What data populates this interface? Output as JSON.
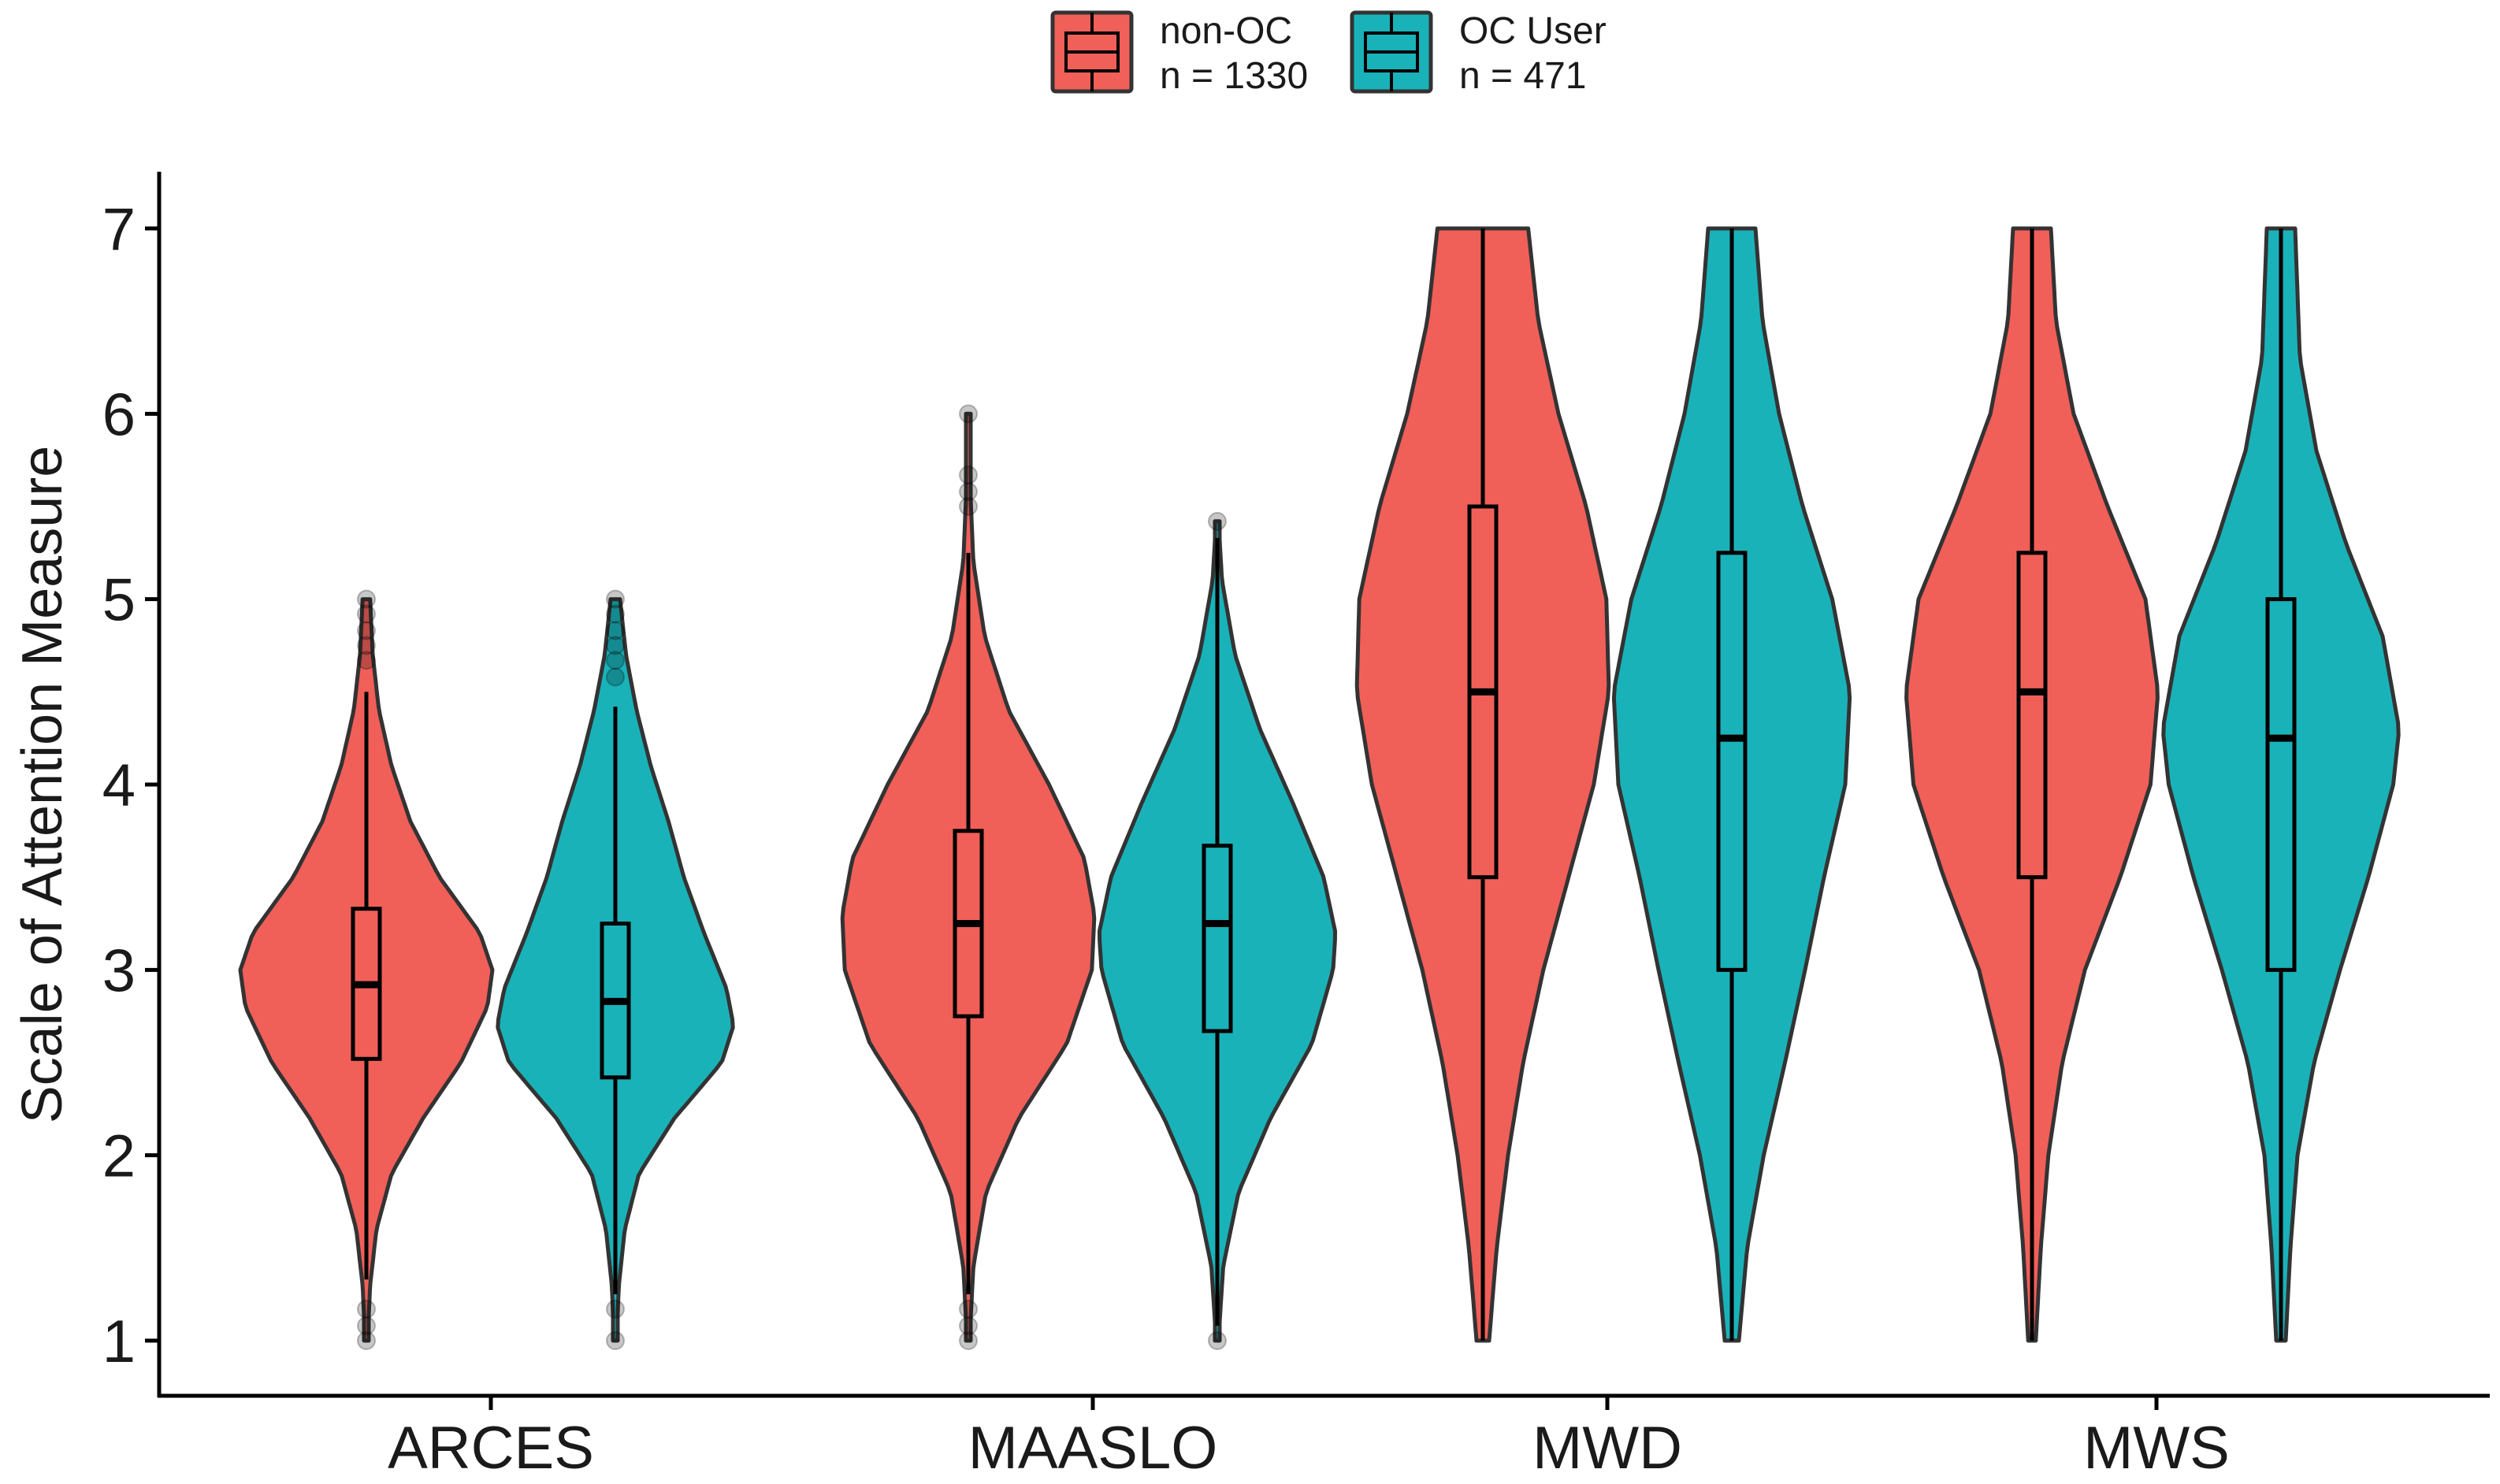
{
  "chart_data": {
    "type": "violin",
    "title": "",
    "xlabel": "",
    "ylabel": "Scale of Attention Measure",
    "ylim": [
      1,
      7
    ],
    "yticks": [
      1,
      2,
      3,
      4,
      5,
      6,
      7
    ],
    "grid": false,
    "legend_position": "top",
    "categories": [
      "ARCES",
      "MAASLO",
      "MWD",
      "MWS"
    ],
    "series": [
      {
        "name": "non-OC",
        "label_line1": "non-OC",
        "label_line2": "n = 1330",
        "n": 1330,
        "color": "#F15F59",
        "groups": [
          {
            "category": "ARCES",
            "min": 1.0,
            "max": 5.0,
            "q1": 2.52,
            "median": 2.92,
            "q3": 3.33,
            "whisker_low": 1.33,
            "whisker_high": 4.5,
            "outliers": [
              5.0,
              4.92,
              4.83,
              4.75,
              4.67,
              1.17,
              1.08,
              1.0
            ],
            "density": [
              [
                1.0,
                0.01
              ],
              [
                1.3,
                0.03
              ],
              [
                1.6,
                0.08
              ],
              [
                1.9,
                0.2
              ],
              [
                2.2,
                0.45
              ],
              [
                2.5,
                0.75
              ],
              [
                2.8,
                0.96
              ],
              [
                3.0,
                1.0
              ],
              [
                3.2,
                0.9
              ],
              [
                3.5,
                0.58
              ],
              [
                3.8,
                0.35
              ],
              [
                4.1,
                0.2
              ],
              [
                4.4,
                0.1
              ],
              [
                4.7,
                0.05
              ],
              [
                5.0,
                0.03
              ]
            ]
          },
          {
            "category": "MAASLO",
            "min": 1.0,
            "max": 6.0,
            "q1": 2.75,
            "median": 3.25,
            "q3": 3.75,
            "whisker_low": 1.25,
            "whisker_high": 5.25,
            "outliers": [
              6.0,
              5.67,
              5.58,
              5.5,
              1.17,
              1.08,
              1.0
            ],
            "density": [
              [
                1.0,
                0.01
              ],
              [
                1.4,
                0.04
              ],
              [
                1.8,
                0.14
              ],
              [
                2.2,
                0.4
              ],
              [
                2.6,
                0.78
              ],
              [
                3.0,
                0.98
              ],
              [
                3.3,
                1.0
              ],
              [
                3.6,
                0.92
              ],
              [
                4.0,
                0.64
              ],
              [
                4.4,
                0.32
              ],
              [
                4.8,
                0.13
              ],
              [
                5.2,
                0.04
              ],
              [
                5.6,
                0.015
              ],
              [
                6.0,
                0.005
              ]
            ]
          },
          {
            "category": "MWD",
            "min": 1.0,
            "max": 7.0,
            "q1": 3.5,
            "median": 4.5,
            "q3": 5.5,
            "whisker_low": 1.0,
            "whisker_high": 7.0,
            "outliers": [],
            "density": [
              [
                1.0,
                0.05
              ],
              [
                1.5,
                0.11
              ],
              [
                2.0,
                0.2
              ],
              [
                2.5,
                0.32
              ],
              [
                3.0,
                0.48
              ],
              [
                3.5,
                0.68
              ],
              [
                4.0,
                0.88
              ],
              [
                4.5,
                1.0
              ],
              [
                5.0,
                0.98
              ],
              [
                5.5,
                0.82
              ],
              [
                6.0,
                0.6
              ],
              [
                6.5,
                0.44
              ],
              [
                7.0,
                0.36
              ]
            ]
          },
          {
            "category": "MWS",
            "min": 1.0,
            "max": 7.0,
            "q1": 3.5,
            "median": 4.5,
            "q3": 5.25,
            "whisker_low": 1.0,
            "whisker_high": 7.0,
            "outliers": [],
            "density": [
              [
                1.0,
                0.03
              ],
              [
                1.5,
                0.07
              ],
              [
                2.0,
                0.13
              ],
              [
                2.5,
                0.24
              ],
              [
                3.0,
                0.42
              ],
              [
                3.5,
                0.7
              ],
              [
                4.0,
                0.94
              ],
              [
                4.5,
                1.0
              ],
              [
                5.0,
                0.9
              ],
              [
                5.5,
                0.6
              ],
              [
                6.0,
                0.33
              ],
              [
                6.5,
                0.19
              ],
              [
                7.0,
                0.15
              ]
            ]
          }
        ]
      },
      {
        "name": "OC User",
        "label_line1": "OC User",
        "label_line2": "n = 471",
        "n": 471,
        "color": "#1AB2B9",
        "groups": [
          {
            "category": "ARCES",
            "min": 1.0,
            "max": 5.0,
            "q1": 2.42,
            "median": 2.83,
            "q3": 3.25,
            "whisker_low": 1.25,
            "whisker_high": 4.42,
            "outliers": [
              5.0,
              4.92,
              4.83,
              4.75,
              4.67,
              4.58,
              1.17,
              1.0
            ],
            "density": [
              [
                1.0,
                0.01
              ],
              [
                1.3,
                0.03
              ],
              [
                1.6,
                0.08
              ],
              [
                1.9,
                0.2
              ],
              [
                2.2,
                0.5
              ],
              [
                2.5,
                0.9
              ],
              [
                2.7,
                1.0
              ],
              [
                2.9,
                0.94
              ],
              [
                3.2,
                0.75
              ],
              [
                3.5,
                0.58
              ],
              [
                3.8,
                0.45
              ],
              [
                4.1,
                0.3
              ],
              [
                4.4,
                0.18
              ],
              [
                4.7,
                0.09
              ],
              [
                5.0,
                0.04
              ]
            ]
          },
          {
            "category": "MAASLO",
            "min": 1.0,
            "max": 5.42,
            "q1": 2.67,
            "median": 3.25,
            "q3": 3.67,
            "whisker_low": 1.08,
            "whisker_high": 5.33,
            "outliers": [
              5.42,
              1.0
            ],
            "density": [
              [
                1.0,
                0.01
              ],
              [
                1.4,
                0.05
              ],
              [
                1.8,
                0.18
              ],
              [
                2.2,
                0.45
              ],
              [
                2.6,
                0.8
              ],
              [
                3.0,
                0.98
              ],
              [
                3.2,
                1.0
              ],
              [
                3.5,
                0.9
              ],
              [
                3.9,
                0.64
              ],
              [
                4.3,
                0.36
              ],
              [
                4.7,
                0.15
              ],
              [
                5.1,
                0.04
              ],
              [
                5.42,
                0.01
              ]
            ]
          },
          {
            "category": "MWD",
            "min": 1.0,
            "max": 7.0,
            "q1": 3.0,
            "median": 4.25,
            "q3": 5.25,
            "whisker_low": 1.0,
            "whisker_high": 7.0,
            "outliers": [],
            "density": [
              [
                1.0,
                0.06
              ],
              [
                1.5,
                0.13
              ],
              [
                2.0,
                0.27
              ],
              [
                2.5,
                0.45
              ],
              [
                3.0,
                0.62
              ],
              [
                3.5,
                0.78
              ],
              [
                4.0,
                0.96
              ],
              [
                4.5,
                1.0
              ],
              [
                5.0,
                0.85
              ],
              [
                5.5,
                0.6
              ],
              [
                6.0,
                0.4
              ],
              [
                6.5,
                0.26
              ],
              [
                7.0,
                0.2
              ]
            ]
          },
          {
            "category": "MWS",
            "min": 1.0,
            "max": 7.0,
            "q1": 3.0,
            "median": 4.25,
            "q3": 5.0,
            "whisker_low": 1.0,
            "whisker_high": 7.0,
            "outliers": [],
            "density": [
              [
                1.0,
                0.04
              ],
              [
                1.5,
                0.08
              ],
              [
                2.0,
                0.14
              ],
              [
                2.5,
                0.28
              ],
              [
                3.0,
                0.5
              ],
              [
                3.5,
                0.74
              ],
              [
                4.0,
                0.95
              ],
              [
                4.3,
                1.0
              ],
              [
                4.8,
                0.86
              ],
              [
                5.3,
                0.55
              ],
              [
                5.8,
                0.3
              ],
              [
                6.3,
                0.16
              ],
              [
                7.0,
                0.12
              ]
            ]
          }
        ]
      }
    ]
  }
}
